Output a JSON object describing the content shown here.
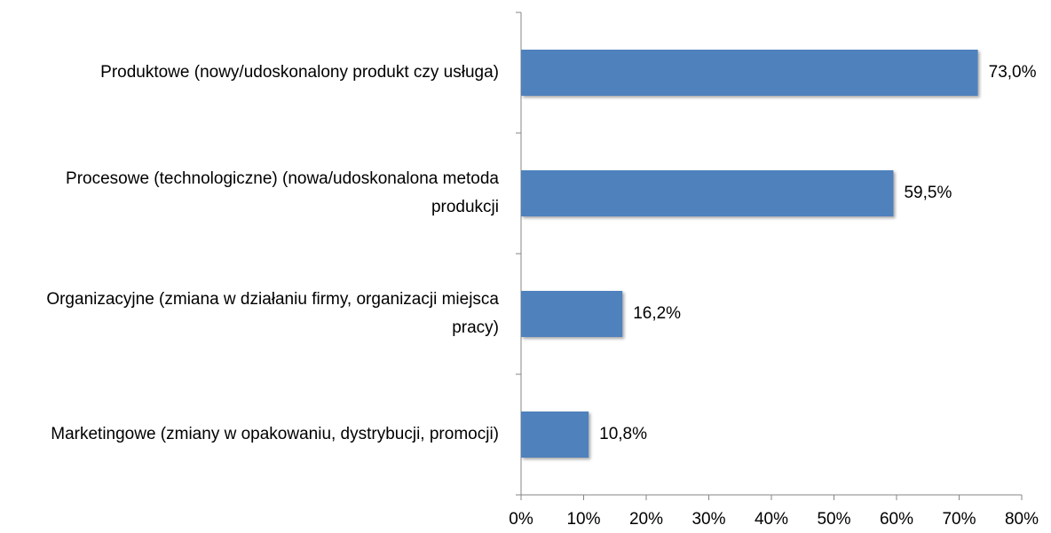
{
  "chart_data": {
    "type": "bar",
    "orientation": "horizontal",
    "categories": [
      "Produktowe (nowy/udoskonalony produkt czy usługa)",
      "Procesowe (technologiczne) (nowa/udoskonalona metoda produkcji",
      "Organizacyjne (zmiana w działaniu firmy, organizacji miejsca pracy)",
      "Marketingowe (zmiany w opakowaniu, dystrybucji, promocji)"
    ],
    "values": [
      73.0,
      59.5,
      16.2,
      10.8
    ],
    "value_labels": [
      "73,0%",
      "59,5%",
      "16,2%",
      "10,8%"
    ],
    "color": "#4f81bd",
    "xlim": [
      0,
      80
    ],
    "xticks": [
      {
        "value": 0,
        "label": "0%"
      },
      {
        "value": 10,
        "label": "10%"
      },
      {
        "value": 20,
        "label": "20%"
      },
      {
        "value": 30,
        "label": "30%"
      },
      {
        "value": 40,
        "label": "40%"
      },
      {
        "value": 50,
        "label": "50%"
      },
      {
        "value": 60,
        "label": "60%"
      },
      {
        "value": 70,
        "label": "70%"
      },
      {
        "value": 80,
        "label": "80%"
      }
    ],
    "grid": false
  }
}
